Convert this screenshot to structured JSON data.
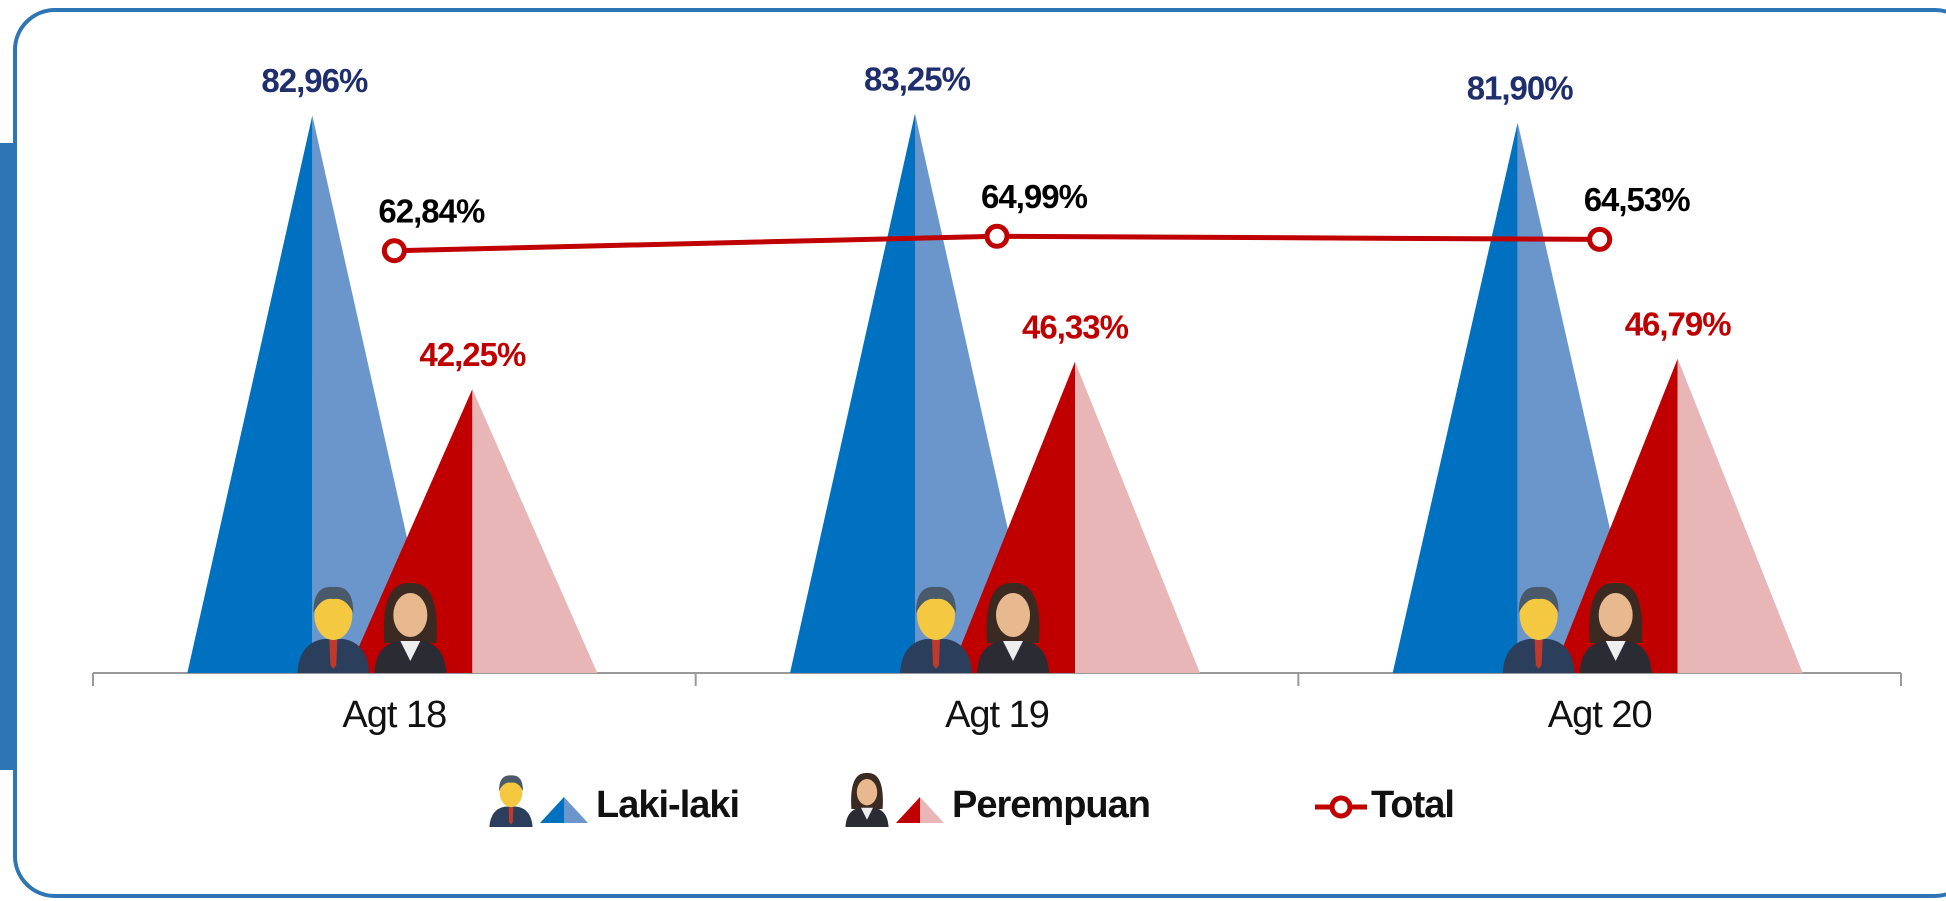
{
  "chart_data": {
    "type": "bar",
    "categories": [
      "Agt 18",
      "Agt 19",
      "Agt 20"
    ],
    "series": [
      {
        "name": "Laki-laki",
        "type": "peak",
        "color": "#0070c0",
        "color_light": "#6a96cb",
        "label_color": "#1f2f6e",
        "values": [
          82.96,
          83.25,
          81.9
        ],
        "value_labels": [
          "82,96%",
          "83,25%",
          "81,90%"
        ]
      },
      {
        "name": "Perempuan",
        "type": "peak",
        "color": "#c00000",
        "color_light": "#e8b6b6",
        "label_color": "#c00000",
        "values": [
          42.25,
          46.33,
          46.79
        ],
        "value_labels": [
          "42,25%",
          "46,33%",
          "46,79%"
        ]
      },
      {
        "name": "Total",
        "type": "line",
        "color": "#c00000",
        "label_color": "#000000",
        "values": [
          62.84,
          64.99,
          64.53
        ],
        "value_labels": [
          "62,84%",
          "64,99%",
          "64,53%"
        ]
      }
    ]
  }
}
